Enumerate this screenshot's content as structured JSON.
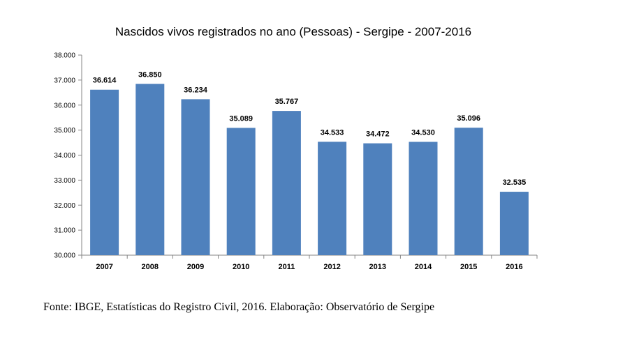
{
  "chart_data": {
    "type": "bar",
    "title": "Nascidos vivos registrados no ano (Pessoas) - Sergipe - 2007-2016",
    "xlabel": "",
    "ylabel": "",
    "categories": [
      "2007",
      "2008",
      "2009",
      "2010",
      "2011",
      "2012",
      "2013",
      "2014",
      "2015",
      "2016"
    ],
    "values": [
      36614,
      36850,
      36234,
      35089,
      35767,
      34533,
      34472,
      34530,
      35096,
      32535
    ],
    "value_labels": [
      "36.614",
      "36.850",
      "36.234",
      "35.089",
      "35.767",
      "34.533",
      "34.472",
      "34.530",
      "35.096",
      "32.535"
    ],
    "ylim": [
      30000,
      38000
    ],
    "yticks": [
      30000,
      31000,
      32000,
      33000,
      34000,
      35000,
      36000,
      37000,
      38000
    ],
    "ytick_labels": [
      "30.000",
      "31.000",
      "32.000",
      "33.000",
      "34.000",
      "35.000",
      "36.000",
      "37.000",
      "38.000"
    ],
    "grid": false,
    "legend": "none",
    "bar_color": "#4f81bd"
  },
  "source": "Fonte: IBGE, Estatísticas do Registro Civil, 2016. Elaboração: Observatório de Sergipe"
}
